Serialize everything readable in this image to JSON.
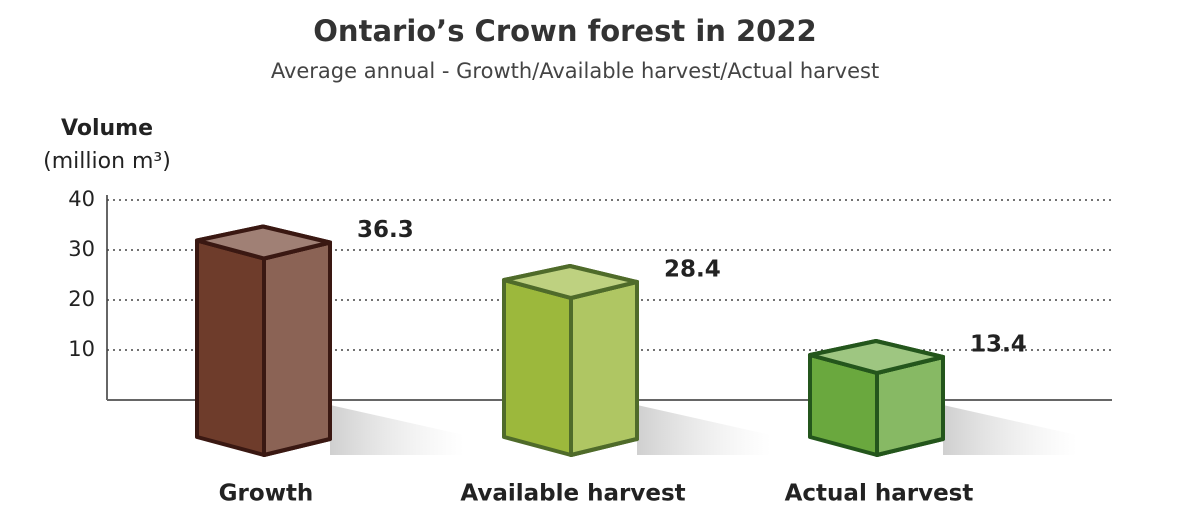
{
  "chart_data": {
    "type": "bar3d",
    "title": "Ontario’s Crown forest in 2022",
    "subtitle": "Average annual - Growth/Available harvest/Actual harvest",
    "y_label": "Volume",
    "y_label_unit": "(million m³)",
    "categories": [
      "Growth",
      "Available harvest",
      "Actual harvest"
    ],
    "values": [
      36.3,
      28.4,
      13.4
    ],
    "colors": [
      "#6e3c2b",
      "#9cb83c",
      "#6aa83e"
    ],
    "edge_colors": [
      "#3a1812",
      "#4f6b2a",
      "#24561c"
    ],
    "ylim": [
      0,
      40
    ],
    "yticks": [
      10,
      20,
      30,
      40
    ],
    "grid": true
  }
}
